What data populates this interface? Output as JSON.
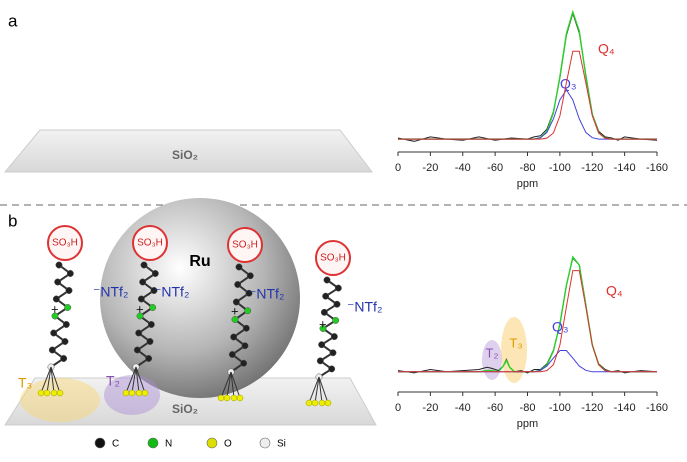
{
  "diagram": {
    "panel_labels": [
      "a",
      "b"
    ],
    "surface_label": "SiO₂",
    "acid_group": "SO₃H",
    "anion": "⁻NTf₂",
    "cation_charge": "+",
    "particle": "Ru",
    "sites": [
      "T₃",
      "T₂"
    ],
    "legend": [
      "C",
      "N",
      "O",
      "Si"
    ]
  },
  "chart_data": [
    {
      "type": "line",
      "x_label": "ppm",
      "x": [
        0,
        -10,
        -20,
        -30,
        -40,
        -50,
        -60,
        -70,
        -80,
        -84,
        -88,
        -92,
        -96,
        -100,
        -104,
        -108,
        -112,
        -116,
        -120,
        -124,
        -128,
        -132,
        -136,
        -140,
        -150,
        -160
      ],
      "xlim": [
        0,
        -160
      ],
      "xticks": [
        0,
        -20,
        -40,
        -60,
        -80,
        -100,
        -120,
        -140,
        -160
      ],
      "ylim": [
        -0.1,
        1.2
      ],
      "series": [
        {
          "color": "#222222",
          "values": [
            0.01,
            -0.02,
            0.02,
            0.0,
            -0.01,
            0.02,
            -0.01,
            0.01,
            0.0,
            0.02,
            0.03,
            0.09,
            0.25,
            0.56,
            0.95,
            1.15,
            0.97,
            0.59,
            0.23,
            0.07,
            0.02,
            0.01,
            -0.01,
            0.02,
            0.0,
            -0.01
          ]
        },
        {
          "color": "#2bd12b",
          "values": [
            0,
            0,
            0,
            0,
            0,
            0,
            0,
            0,
            0,
            0,
            0.013,
            0.07,
            0.241,
            0.572,
            0.966,
            1.164,
            0.989,
            0.577,
            0.225,
            0.056,
            0.009,
            0,
            0,
            0,
            0,
            0
          ]
        },
        {
          "name": "Q₃",
          "color": "#4444dd",
          "values": [
            0,
            0,
            0,
            0,
            0,
            0,
            0,
            0,
            0,
            0,
            0.013,
            0.061,
            0.185,
            0.36,
            0.45,
            0.36,
            0.185,
            0.061,
            0.013,
            0,
            0,
            0,
            0,
            0,
            0,
            0
          ]
        },
        {
          "name": "Q₄",
          "color": "#e03030",
          "values": [
            0,
            0,
            0,
            0,
            0,
            0,
            0,
            0,
            0,
            0,
            0,
            0.009,
            0.056,
            0.212,
            0.516,
            0.804,
            0.804,
            0.516,
            0.212,
            0.056,
            0.009,
            0,
            0,
            0,
            0,
            0
          ]
        }
      ]
    },
    {
      "type": "line",
      "x_label": "ppm",
      "annotations": [
        "T₂",
        "T₃"
      ],
      "x": [
        0,
        -10,
        -20,
        -30,
        -40,
        -50,
        -55,
        -58,
        -62,
        -65,
        -67,
        -69,
        -72,
        -76,
        -80,
        -84,
        -88,
        -92,
        -96,
        -100,
        -104,
        -108,
        -112,
        -116,
        -120,
        -124,
        -128,
        -132,
        -136,
        -140,
        -150,
        -160
      ],
      "xlim": [
        0,
        -160
      ],
      "xticks": [
        0,
        -20,
        -40,
        -60,
        -80,
        -100,
        -120,
        -140,
        -160
      ],
      "ylim": [
        -0.1,
        1.1
      ],
      "series": [
        {
          "color": "#222222",
          "values": [
            0.01,
            -0.01,
            0.02,
            0.0,
            0.01,
            0.02,
            0.04,
            0.03,
            0.01,
            0.05,
            0.11,
            0.04,
            0.0,
            0.01,
            -0.01,
            0.02,
            0.02,
            0.07,
            0.19,
            0.42,
            0.77,
            1.01,
            0.95,
            0.6,
            0.24,
            0.07,
            0.02,
            0.0,
            0.01,
            -0.01,
            0.01,
            0.0
          ]
        },
        {
          "color": "#2bd12b",
          "values": [
            0,
            0,
            0,
            0,
            0,
            0,
            0.01,
            0.01,
            0,
            0.05,
            0.1,
            0.04,
            0,
            0,
            0,
            0,
            0.013,
            0.06,
            0.184,
            0.426,
            0.766,
            1.02,
            0.949,
            0.59,
            0.237,
            0.063,
            0.01,
            0,
            0,
            0,
            0,
            0
          ]
        },
        {
          "name": "Q₃",
          "color": "#4444dd",
          "values": [
            0,
            0,
            0,
            0,
            0,
            0,
            0,
            0,
            0,
            0,
            0,
            0,
            0,
            0,
            0,
            0,
            0.013,
            0.05,
            0.121,
            0.189,
            0.189,
            0.121,
            0.05,
            0.013,
            0,
            0,
            0,
            0,
            0,
            0,
            0,
            0
          ]
        },
        {
          "name": "Q₄",
          "color": "#e03030",
          "values": [
            0,
            0,
            0,
            0,
            0,
            0,
            0,
            0,
            0,
            0,
            0,
            0,
            0,
            0,
            0,
            0,
            0,
            0.01,
            0.063,
            0.237,
            0.577,
            0.899,
            0.899,
            0.577,
            0.237,
            0.063,
            0.01,
            0,
            0,
            0,
            0,
            0
          ]
        }
      ]
    }
  ]
}
